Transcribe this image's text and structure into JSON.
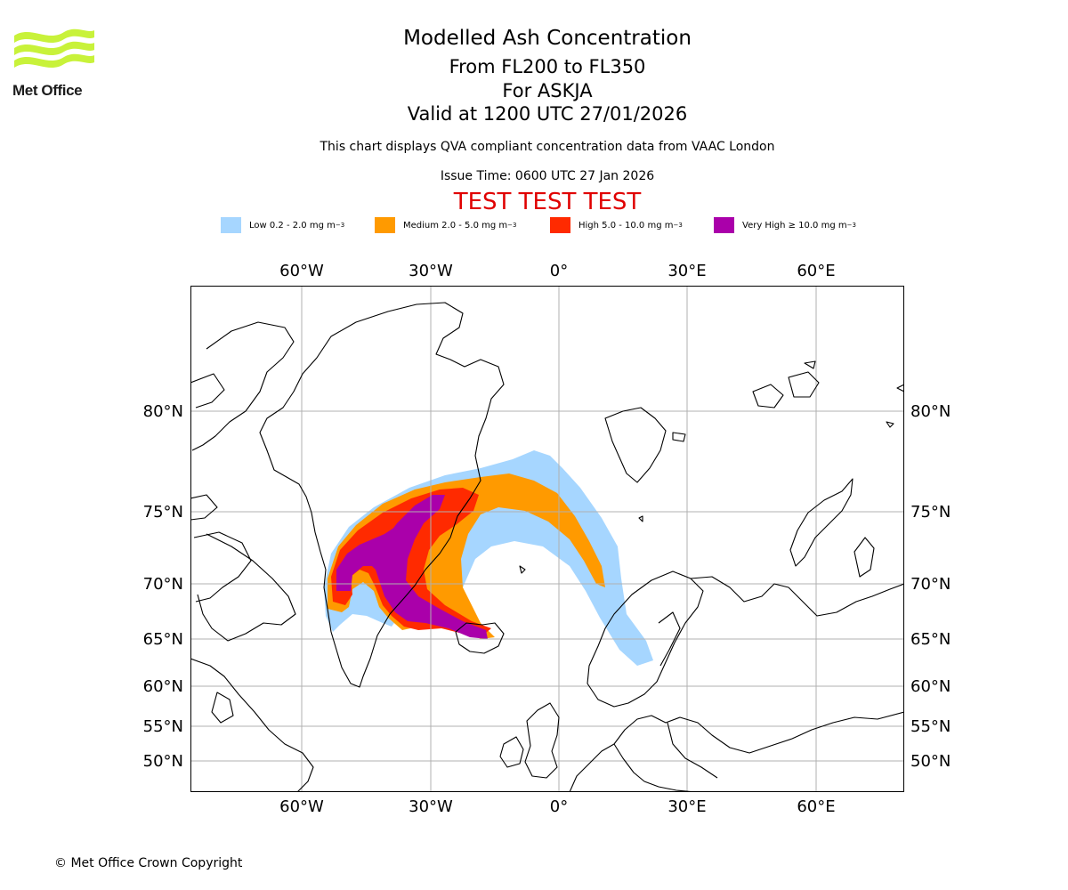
{
  "logo": {
    "name": "Met Office"
  },
  "header": {
    "title": "Modelled Ash Concentration",
    "levels": "From FL200 to FL350",
    "volcano": "For ASKJA",
    "valid": "Valid at 1200 UTC 27/01/2026",
    "description": "This chart displays QVA compliant concentration data from VAAC London",
    "issue_time": "Issue Time: 0600 UTC 27 Jan 2026",
    "test_banner": "TEST TEST TEST"
  },
  "legend": [
    {
      "label": "Low 0.2 - 2.0 mg m",
      "sup": "−3",
      "color": "#a6d6ff"
    },
    {
      "label": "Medium 2.0 - 5.0 mg m",
      "sup": "−3",
      "color": "#ff9a00"
    },
    {
      "label": "High 5.0 - 10.0 mg m",
      "sup": "−3",
      "color": "#ff2a00"
    },
    {
      "label": "Very High  ≥  10.0 mg m",
      "sup": "−3",
      "color": "#aa00aa"
    }
  ],
  "map": {
    "lon_labels": [
      "60°W",
      "30°W",
      "0°",
      "30°E",
      "60°E"
    ],
    "lat_labels": [
      "80°N",
      "75°N",
      "70°N",
      "65°N",
      "60°N",
      "55°N",
      "50°N"
    ],
    "colors": {
      "grid": "#b0b0b0",
      "coast": "#000000"
    }
  },
  "footer": {
    "copyright": "© Met Office Crown Copyright"
  }
}
